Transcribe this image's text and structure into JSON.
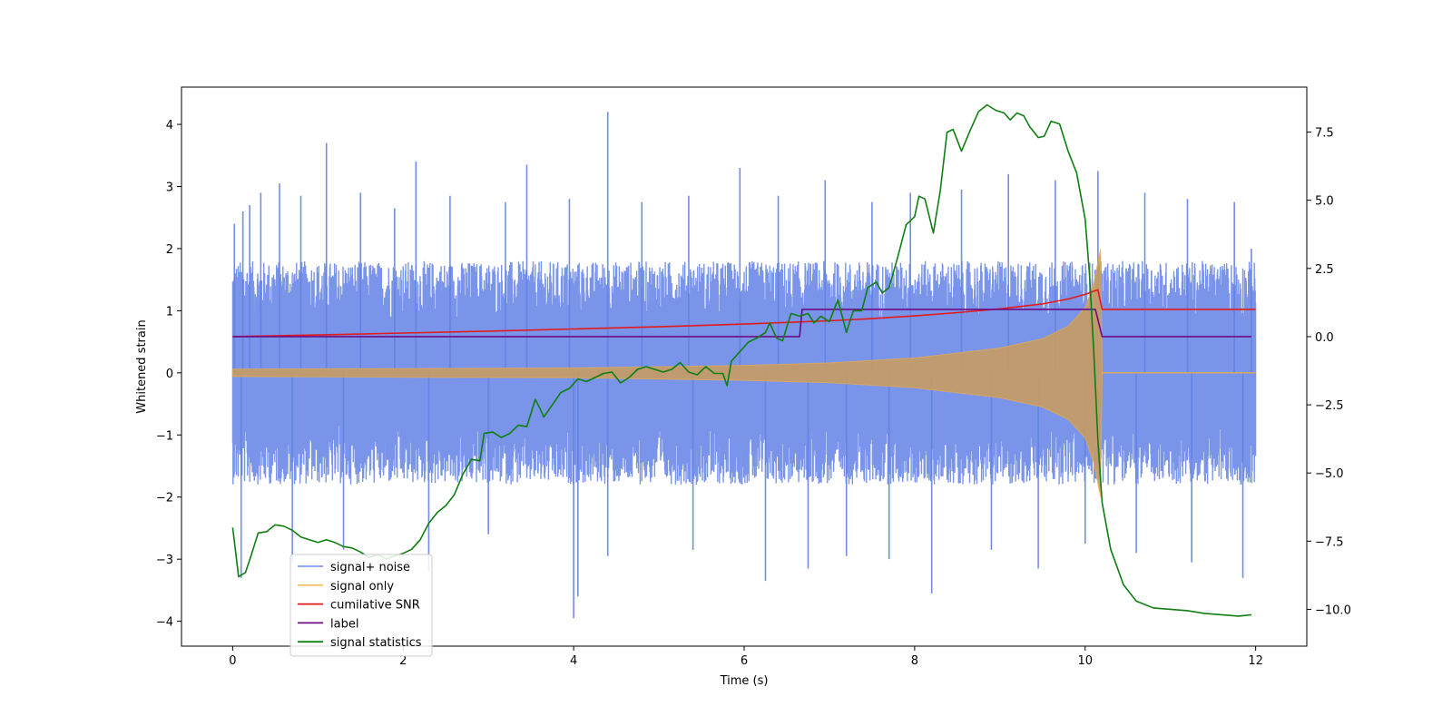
{
  "chart_data": {
    "type": "line",
    "xlabel": "Time (s)",
    "ylabel": "Whitened strain",
    "y2label": "",
    "xlim": [
      -0.6,
      12.6
    ],
    "ylim": [
      -4.4,
      4.6
    ],
    "y2lim": [
      -11.35,
      9.15
    ],
    "x_ticks": [
      0,
      2,
      4,
      6,
      8,
      10,
      12
    ],
    "y_ticks": [
      -4,
      -3,
      -2,
      -1,
      0,
      1,
      2,
      3,
      4
    ],
    "y2_ticks": [
      -10.0,
      -7.5,
      -5.0,
      -2.5,
      0.0,
      2.5,
      5.0,
      7.5
    ],
    "grid": false,
    "legend_position": "lower-left",
    "series": [
      {
        "name": "signal+ noise",
        "axis": "left",
        "color": "#6281e4",
        "style": "noise-band",
        "x_range": [
          0,
          12
        ],
        "approx_envelope": {
          "typical_low": -1.5,
          "typical_high": 1.5,
          "min": -3.95,
          "max": 4.2
        },
        "spikes": [
          {
            "x": 0.02,
            "y": 2.4
          },
          {
            "x": 0.12,
            "y": 2.6
          },
          {
            "x": 0.2,
            "y": 2.7
          },
          {
            "x": 0.33,
            "y": 2.9
          },
          {
            "x": 0.55,
            "y": 3.05
          },
          {
            "x": 0.8,
            "y": 2.85
          },
          {
            "x": 1.1,
            "y": 3.7
          },
          {
            "x": 1.5,
            "y": 2.9
          },
          {
            "x": 1.9,
            "y": 2.65
          },
          {
            "x": 2.15,
            "y": 3.4
          },
          {
            "x": 2.55,
            "y": 2.85
          },
          {
            "x": 3.2,
            "y": 2.75
          },
          {
            "x": 3.45,
            "y": 3.35
          },
          {
            "x": 3.95,
            "y": 2.8
          },
          {
            "x": 4.4,
            "y": 4.2
          },
          {
            "x": 4.8,
            "y": 2.75
          },
          {
            "x": 5.35,
            "y": 2.85
          },
          {
            "x": 5.95,
            "y": 3.3
          },
          {
            "x": 6.4,
            "y": 2.85
          },
          {
            "x": 6.95,
            "y": 3.1
          },
          {
            "x": 7.5,
            "y": 2.75
          },
          {
            "x": 7.95,
            "y": 2.9
          },
          {
            "x": 8.55,
            "y": 2.95
          },
          {
            "x": 9.1,
            "y": 3.2
          },
          {
            "x": 9.65,
            "y": 3.1
          },
          {
            "x": 10.15,
            "y": 3.25
          },
          {
            "x": 10.7,
            "y": 2.9
          },
          {
            "x": 11.2,
            "y": 2.8
          },
          {
            "x": 11.75,
            "y": 2.75
          },
          {
            "x": 11.95,
            "y": 2.0
          },
          {
            "x": 0.1,
            "y": -3.3
          },
          {
            "x": 0.7,
            "y": -3.05
          },
          {
            "x": 1.3,
            "y": -2.85
          },
          {
            "x": 2.3,
            "y": -3.2
          },
          {
            "x": 3.0,
            "y": -2.6
          },
          {
            "x": 4.0,
            "y": -3.95
          },
          {
            "x": 4.05,
            "y": -3.6
          },
          {
            "x": 4.4,
            "y": -2.95
          },
          {
            "x": 5.4,
            "y": -2.85
          },
          {
            "x": 6.25,
            "y": -3.35
          },
          {
            "x": 6.75,
            "y": -3.15
          },
          {
            "x": 7.2,
            "y": -2.95
          },
          {
            "x": 7.7,
            "y": -3.0
          },
          {
            "x": 8.2,
            "y": -3.55
          },
          {
            "x": 8.9,
            "y": -2.85
          },
          {
            "x": 9.45,
            "y": -3.15
          },
          {
            "x": 10.0,
            "y": -2.75
          },
          {
            "x": 10.6,
            "y": -2.9
          },
          {
            "x": 11.25,
            "y": -3.05
          },
          {
            "x": 11.85,
            "y": -3.3
          }
        ]
      },
      {
        "name": "signal only",
        "axis": "left",
        "color": "#f5b041",
        "style": "chirp",
        "amplitude_envelope": [
          {
            "x": 0,
            "y": 0.06
          },
          {
            "x": 2,
            "y": 0.07
          },
          {
            "x": 4,
            "y": 0.08
          },
          {
            "x": 6,
            "y": 0.12
          },
          {
            "x": 7,
            "y": 0.16
          },
          {
            "x": 8,
            "y": 0.24
          },
          {
            "x": 9,
            "y": 0.4
          },
          {
            "x": 9.5,
            "y": 0.55
          },
          {
            "x": 9.8,
            "y": 0.75
          },
          {
            "x": 10.0,
            "y": 1.05
          },
          {
            "x": 10.1,
            "y": 1.45
          },
          {
            "x": 10.18,
            "y": 2.0
          },
          {
            "x": 10.2,
            "y": 0.0
          },
          {
            "x": 12,
            "y": 0.0
          }
        ]
      },
      {
        "name": "cumilative SNR",
        "axis": "right",
        "color": "#e31a1c",
        "points": [
          {
            "x": 0,
            "y": 0.0
          },
          {
            "x": 1,
            "y": 0.06
          },
          {
            "x": 2,
            "y": 0.13
          },
          {
            "x": 3,
            "y": 0.2
          },
          {
            "x": 4,
            "y": 0.28
          },
          {
            "x": 5,
            "y": 0.36
          },
          {
            "x": 6,
            "y": 0.46
          },
          {
            "x": 7,
            "y": 0.58
          },
          {
            "x": 7.5,
            "y": 0.66
          },
          {
            "x": 8,
            "y": 0.76
          },
          {
            "x": 8.5,
            "y": 0.88
          },
          {
            "x": 9,
            "y": 1.02
          },
          {
            "x": 9.5,
            "y": 1.2
          },
          {
            "x": 9.8,
            "y": 1.38
          },
          {
            "x": 10.0,
            "y": 1.55
          },
          {
            "x": 10.15,
            "y": 1.72
          },
          {
            "x": 10.2,
            "y": 1.0
          },
          {
            "x": 12,
            "y": 1.0
          }
        ]
      },
      {
        "name": "label",
        "axis": "right",
        "color": "#6a0d83",
        "points": [
          {
            "x": 0,
            "y": 0.0
          },
          {
            "x": 6.65,
            "y": 0.0
          },
          {
            "x": 6.68,
            "y": 1.0
          },
          {
            "x": 10.12,
            "y": 1.0
          },
          {
            "x": 10.2,
            "y": 0.0
          },
          {
            "x": 11.95,
            "y": 0.0
          }
        ]
      },
      {
        "name": "signal statistics",
        "axis": "right",
        "color": "#0f7f12",
        "points": [
          {
            "x": 0.0,
            "y": -7.0
          },
          {
            "x": 0.07,
            "y": -8.8
          },
          {
            "x": 0.15,
            "y": -8.65
          },
          {
            "x": 0.22,
            "y": -8.0
          },
          {
            "x": 0.3,
            "y": -7.2
          },
          {
            "x": 0.4,
            "y": -7.15
          },
          {
            "x": 0.5,
            "y": -6.9
          },
          {
            "x": 0.6,
            "y": -6.95
          },
          {
            "x": 0.7,
            "y": -7.1
          },
          {
            "x": 0.8,
            "y": -7.35
          },
          {
            "x": 0.9,
            "y": -7.45
          },
          {
            "x": 1.0,
            "y": -7.55
          },
          {
            "x": 1.1,
            "y": -7.45
          },
          {
            "x": 1.2,
            "y": -7.55
          },
          {
            "x": 1.3,
            "y": -7.7
          },
          {
            "x": 1.4,
            "y": -7.75
          },
          {
            "x": 1.5,
            "y": -7.9
          },
          {
            "x": 1.6,
            "y": -8.1
          },
          {
            "x": 1.7,
            "y": -8.0
          },
          {
            "x": 1.8,
            "y": -8.15
          },
          {
            "x": 1.9,
            "y": -8.05
          },
          {
            "x": 2.0,
            "y": -7.95
          },
          {
            "x": 2.1,
            "y": -7.8
          },
          {
            "x": 2.2,
            "y": -7.45
          },
          {
            "x": 2.3,
            "y": -6.85
          },
          {
            "x": 2.4,
            "y": -6.45
          },
          {
            "x": 2.5,
            "y": -6.2
          },
          {
            "x": 2.6,
            "y": -5.8
          },
          {
            "x": 2.7,
            "y": -5.05
          },
          {
            "x": 2.8,
            "y": -4.5
          },
          {
            "x": 2.9,
            "y": -4.55
          },
          {
            "x": 2.95,
            "y": -3.55
          },
          {
            "x": 3.05,
            "y": -3.5
          },
          {
            "x": 3.15,
            "y": -3.7
          },
          {
            "x": 3.25,
            "y": -3.55
          },
          {
            "x": 3.35,
            "y": -3.25
          },
          {
            "x": 3.45,
            "y": -3.3
          },
          {
            "x": 3.5,
            "y": -2.8
          },
          {
            "x": 3.55,
            "y": -2.3
          },
          {
            "x": 3.6,
            "y": -2.6
          },
          {
            "x": 3.65,
            "y": -2.95
          },
          {
            "x": 3.75,
            "y": -2.5
          },
          {
            "x": 3.85,
            "y": -2.05
          },
          {
            "x": 3.95,
            "y": -1.9
          },
          {
            "x": 4.05,
            "y": -1.55
          },
          {
            "x": 4.15,
            "y": -1.65
          },
          {
            "x": 4.25,
            "y": -1.5
          },
          {
            "x": 4.35,
            "y": -1.35
          },
          {
            "x": 4.45,
            "y": -1.3
          },
          {
            "x": 4.55,
            "y": -1.7
          },
          {
            "x": 4.65,
            "y": -1.5
          },
          {
            "x": 4.75,
            "y": -1.2
          },
          {
            "x": 4.85,
            "y": -1.1
          },
          {
            "x": 4.95,
            "y": -1.2
          },
          {
            "x": 5.05,
            "y": -1.3
          },
          {
            "x": 5.15,
            "y": -1.2
          },
          {
            "x": 5.25,
            "y": -0.95
          },
          {
            "x": 5.35,
            "y": -1.3
          },
          {
            "x": 5.45,
            "y": -1.4
          },
          {
            "x": 5.55,
            "y": -1.1
          },
          {
            "x": 5.65,
            "y": -1.35
          },
          {
            "x": 5.75,
            "y": -1.35
          },
          {
            "x": 5.8,
            "y": -1.8
          },
          {
            "x": 5.85,
            "y": -0.9
          },
          {
            "x": 5.95,
            "y": -0.55
          },
          {
            "x": 6.05,
            "y": -0.2
          },
          {
            "x": 6.15,
            "y": -0.05
          },
          {
            "x": 6.25,
            "y": 0.15
          },
          {
            "x": 6.3,
            "y": 0.5
          },
          {
            "x": 6.38,
            "y": -0.05
          },
          {
            "x": 6.45,
            "y": -0.15
          },
          {
            "x": 6.55,
            "y": 0.85
          },
          {
            "x": 6.65,
            "y": 0.75
          },
          {
            "x": 6.75,
            "y": 0.85
          },
          {
            "x": 6.82,
            "y": 0.5
          },
          {
            "x": 6.9,
            "y": 0.75
          },
          {
            "x": 7.0,
            "y": 0.55
          },
          {
            "x": 7.1,
            "y": 1.35
          },
          {
            "x": 7.2,
            "y": 0.15
          },
          {
            "x": 7.28,
            "y": 0.95
          },
          {
            "x": 7.38,
            "y": 0.95
          },
          {
            "x": 7.45,
            "y": 1.8
          },
          {
            "x": 7.55,
            "y": 2.0
          },
          {
            "x": 7.62,
            "y": 1.6
          },
          {
            "x": 7.7,
            "y": 1.8
          },
          {
            "x": 7.8,
            "y": 2.9
          },
          {
            "x": 7.9,
            "y": 4.1
          },
          {
            "x": 8.0,
            "y": 4.4
          },
          {
            "x": 8.05,
            "y": 5.15
          },
          {
            "x": 8.12,
            "y": 5.05
          },
          {
            "x": 8.22,
            "y": 3.8
          },
          {
            "x": 8.3,
            "y": 5.35
          },
          {
            "x": 8.38,
            "y": 7.5
          },
          {
            "x": 8.45,
            "y": 7.6
          },
          {
            "x": 8.55,
            "y": 6.8
          },
          {
            "x": 8.65,
            "y": 7.55
          },
          {
            "x": 8.75,
            "y": 8.25
          },
          {
            "x": 8.85,
            "y": 8.5
          },
          {
            "x": 8.95,
            "y": 8.3
          },
          {
            "x": 9.05,
            "y": 8.2
          },
          {
            "x": 9.12,
            "y": 7.95
          },
          {
            "x": 9.2,
            "y": 8.2
          },
          {
            "x": 9.28,
            "y": 8.1
          },
          {
            "x": 9.35,
            "y": 7.7
          },
          {
            "x": 9.45,
            "y": 7.3
          },
          {
            "x": 9.52,
            "y": 7.35
          },
          {
            "x": 9.6,
            "y": 7.9
          },
          {
            "x": 9.7,
            "y": 7.8
          },
          {
            "x": 9.8,
            "y": 6.8
          },
          {
            "x": 9.9,
            "y": 6.0
          },
          {
            "x": 10.0,
            "y": 4.3
          },
          {
            "x": 10.05,
            "y": 2.3
          },
          {
            "x": 10.1,
            "y": -0.5
          },
          {
            "x": 10.15,
            "y": -3.8
          },
          {
            "x": 10.2,
            "y": -6.1
          },
          {
            "x": 10.3,
            "y": -7.8
          },
          {
            "x": 10.45,
            "y": -9.1
          },
          {
            "x": 10.6,
            "y": -9.7
          },
          {
            "x": 10.8,
            "y": -9.95
          },
          {
            "x": 11.0,
            "y": -10.0
          },
          {
            "x": 11.2,
            "y": -10.05
          },
          {
            "x": 11.4,
            "y": -10.15
          },
          {
            "x": 11.6,
            "y": -10.2
          },
          {
            "x": 11.8,
            "y": -10.25
          },
          {
            "x": 11.95,
            "y": -10.2
          }
        ]
      }
    ]
  }
}
